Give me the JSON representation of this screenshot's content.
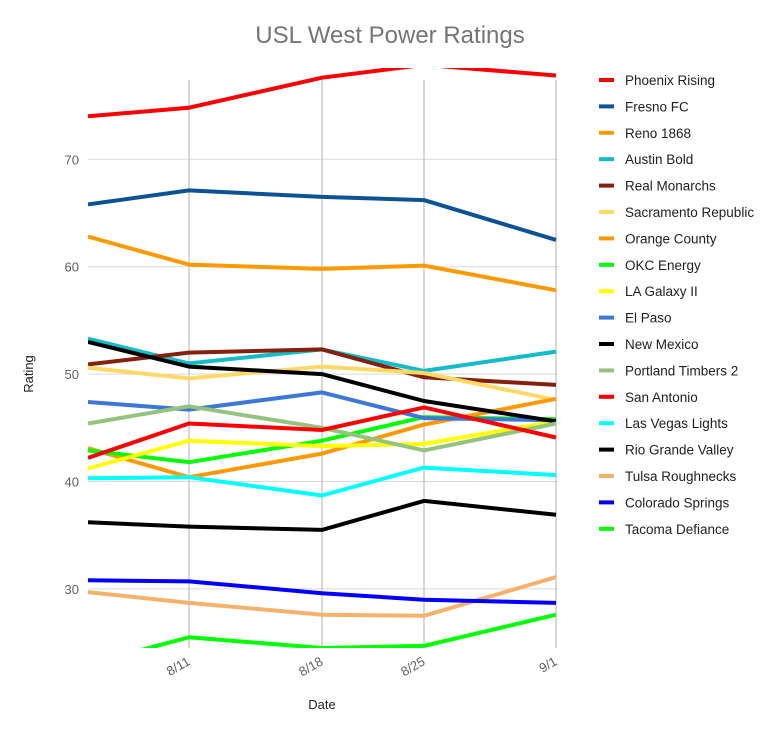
{
  "chart_data": {
    "type": "line",
    "title": "USL West Power Ratings",
    "xlabel": "Date",
    "ylabel": "Rating",
    "categories": [
      "",
      "8/11",
      "8/18",
      "8/25",
      "9/1"
    ],
    "yticks": [
      30,
      40,
      50,
      60,
      70
    ],
    "ylim": [
      24.5,
      78.5
    ],
    "grid": true,
    "legend_position": "right",
    "series": [
      {
        "name": "Phoenix Rising",
        "color": "#ff0000",
        "values": [
          74.0,
          74.8,
          77.6,
          78.8,
          77.8
        ]
      },
      {
        "name": "Fresno FC",
        "color": "#0b5394",
        "values": [
          65.8,
          67.1,
          66.5,
          66.2,
          62.5
        ]
      },
      {
        "name": "Reno 1868",
        "color": "#ff9900",
        "values": [
          62.8,
          60.2,
          59.8,
          60.1,
          57.8
        ]
      },
      {
        "name": "Austin Bold",
        "color": "#12bcc9",
        "values": [
          53.3,
          51.0,
          52.3,
          50.3,
          52.1
        ]
      },
      {
        "name": "Real Monarchs",
        "color": "#85200c",
        "values": [
          50.9,
          52.0,
          52.3,
          49.7,
          49.0
        ]
      },
      {
        "name": "Sacramento Republic",
        "color": "#ffd966",
        "values": [
          50.6,
          49.6,
          50.7,
          50.1,
          47.6
        ]
      },
      {
        "name": "Orange County",
        "color": "#ff9900",
        "values": [
          43.1,
          40.4,
          42.6,
          45.3,
          47.7
        ]
      },
      {
        "name": "OKC Energy",
        "color": "#00ff00",
        "values": [
          42.9,
          41.8,
          43.8,
          46.0,
          45.8
        ]
      },
      {
        "name": "LA Galaxy II",
        "color": "#ffff00",
        "values": [
          41.2,
          43.8,
          43.3,
          43.5,
          45.6
        ]
      },
      {
        "name": "El Paso",
        "color": "#3c78d8",
        "values": [
          47.4,
          46.7,
          48.3,
          45.9,
          45.7
        ]
      },
      {
        "name": "New Mexico",
        "color": "#000000",
        "values": [
          53.0,
          50.7,
          50.0,
          47.5,
          45.6
        ]
      },
      {
        "name": "Portland Timbers 2",
        "color": "#93c47d",
        "values": [
          45.4,
          47.0,
          45.0,
          42.9,
          45.4
        ]
      },
      {
        "name": "San Antonio",
        "color": "#ff0000",
        "values": [
          42.2,
          45.4,
          44.8,
          46.9,
          44.1
        ]
      },
      {
        "name": "Las Vegas Lights",
        "color": "#00ffff",
        "values": [
          40.3,
          40.4,
          38.7,
          41.3,
          40.6
        ]
      },
      {
        "name": "Rio Grande Valley",
        "color": "#000000",
        "values": [
          36.2,
          35.8,
          35.5,
          38.2,
          36.9
        ]
      },
      {
        "name": "Tulsa Roughnecks",
        "color": "#f6b26b",
        "values": [
          29.7,
          28.7,
          27.6,
          27.5,
          31.1
        ]
      },
      {
        "name": "Colorado Springs",
        "color": "#0000ff",
        "values": [
          30.8,
          30.7,
          29.6,
          29.0,
          28.7
        ]
      },
      {
        "name": "Tacoma Defiance",
        "color": "#00ff00",
        "values": [
          23.0,
          25.5,
          24.5,
          24.7,
          27.6
        ]
      }
    ]
  }
}
